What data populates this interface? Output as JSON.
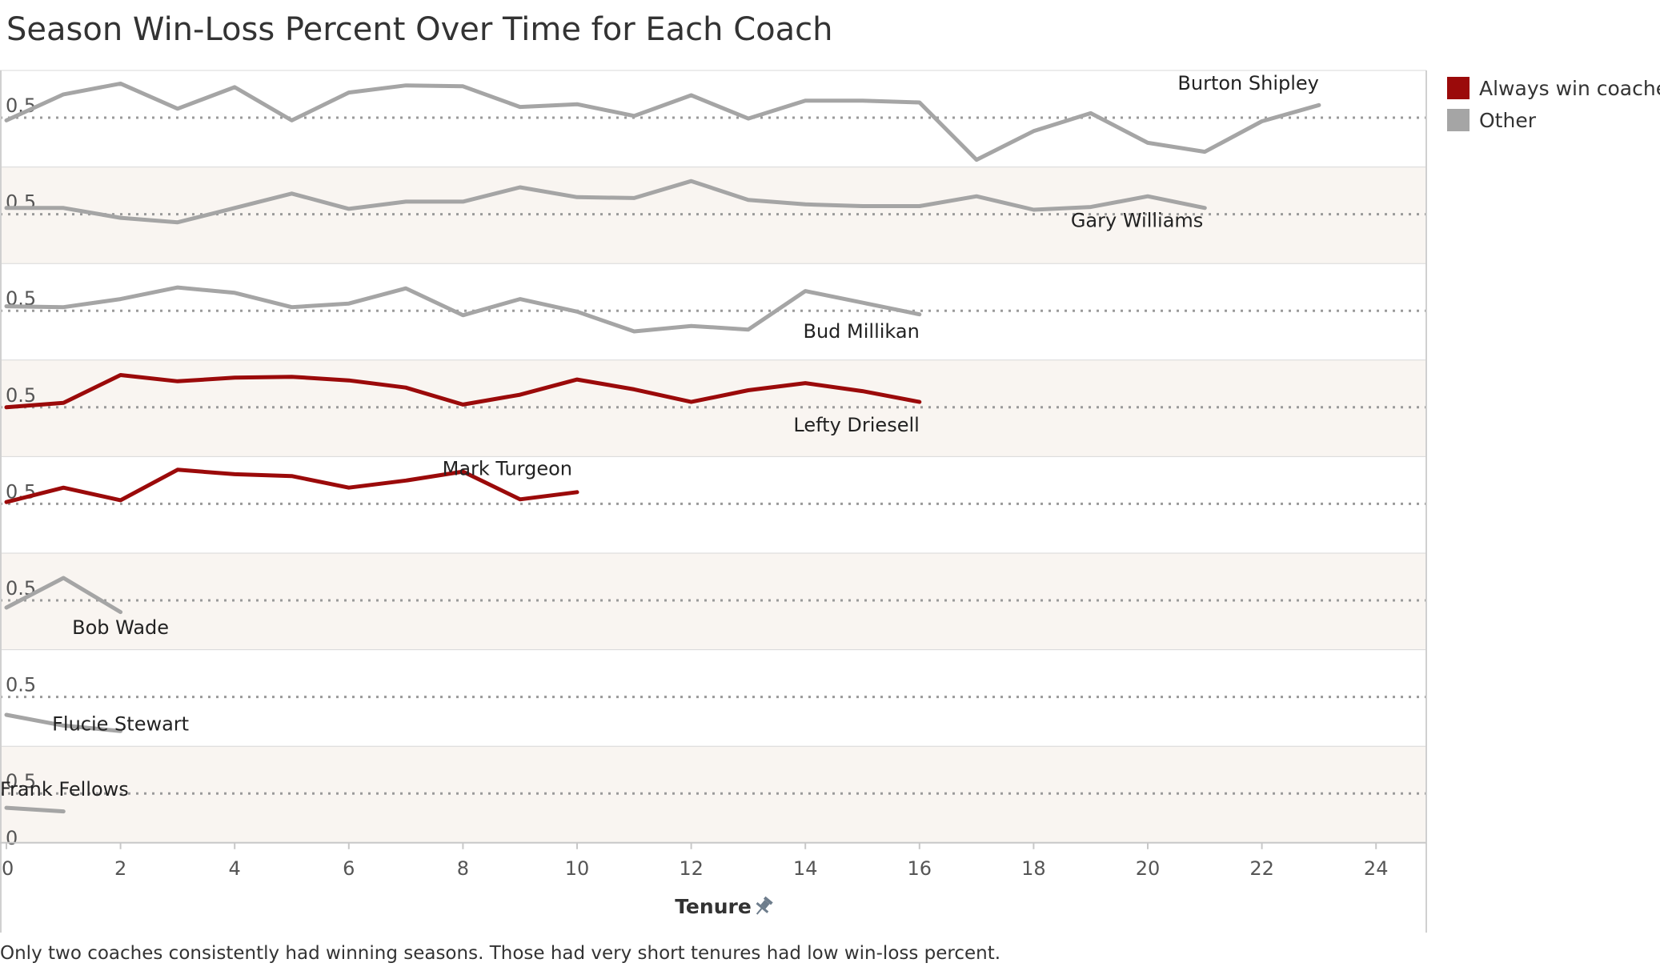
{
  "title": "Season Win-Loss Percent Over Time for Each Coach",
  "footnote": "Only two coaches consistently had winning seasons. Those had very short tenures had low win-loss percent.",
  "legend": {
    "items": [
      {
        "label": "Always win coaches",
        "color": "#9b0a0a"
      },
      {
        "label": "Other",
        "color": "#a5a5a5"
      }
    ]
  },
  "colors": {
    "highlight": "#9b0a0a",
    "other": "#a5a5a5",
    "band_shaded": "#f9f5f1",
    "band_plain": "#ffffff",
    "reference_line": "#9a9a9a",
    "axis_text": "#555555"
  },
  "x_axis": {
    "label": "Tenure",
    "icon": "pin-icon"
  },
  "chart_data": {
    "type": "line",
    "layout": "small-multiples",
    "xlabel": "Tenure",
    "ylabel": "",
    "xlim": [
      0,
      25
    ],
    "x_ticks": [
      0,
      2,
      4,
      6,
      8,
      10,
      12,
      14,
      16,
      18,
      20,
      22,
      24
    ],
    "ylim": [
      0,
      1
    ],
    "y_tick_label": "0.5",
    "y_min_label": "0",
    "reference_line": 0.5,
    "grid": false,
    "legend_position": "top-right",
    "series": [
      {
        "name": "Burton Shipley",
        "group": "Other",
        "x": [
          0,
          1,
          2,
          3,
          4,
          5,
          6,
          7,
          8,
          9,
          10,
          11,
          12,
          13,
          14,
          15,
          16,
          17,
          18,
          19,
          20,
          21,
          22,
          23
        ],
        "values": [
          0.47,
          0.76,
          0.88,
          0.6,
          0.84,
          0.47,
          0.78,
          0.86,
          0.85,
          0.62,
          0.65,
          0.52,
          0.75,
          0.49,
          0.69,
          0.69,
          0.67,
          0.03,
          0.35,
          0.55,
          0.22,
          0.12,
          0.46,
          0.64
        ]
      },
      {
        "name": "Gary Williams",
        "group": "Other",
        "x": [
          0,
          1,
          2,
          3,
          4,
          5,
          6,
          7,
          8,
          9,
          10,
          11,
          12,
          13,
          14,
          15,
          16,
          17,
          18,
          19,
          20,
          21
        ],
        "values": [
          0.57,
          0.57,
          0.46,
          0.41,
          0.57,
          0.73,
          0.56,
          0.64,
          0.64,
          0.8,
          0.69,
          0.68,
          0.87,
          0.66,
          0.61,
          0.59,
          0.59,
          0.7,
          0.55,
          0.58,
          0.7,
          0.57
        ]
      },
      {
        "name": "Bud Millikan",
        "group": "Other",
        "x": [
          0,
          1,
          2,
          3,
          4,
          5,
          6,
          7,
          8,
          9,
          10,
          11,
          12,
          13,
          14,
          15,
          16
        ],
        "values": [
          0.55,
          0.54,
          0.63,
          0.76,
          0.7,
          0.54,
          0.58,
          0.75,
          0.45,
          0.63,
          0.49,
          0.27,
          0.33,
          0.29,
          0.72,
          0.59,
          0.46
        ]
      },
      {
        "name": "Lefty Driesell",
        "group": "Always win coaches",
        "x": [
          0,
          1,
          2,
          3,
          4,
          5,
          6,
          7,
          8,
          9,
          10,
          11,
          12,
          13,
          14,
          15,
          16
        ],
        "values": [
          0.5,
          0.55,
          0.86,
          0.79,
          0.83,
          0.84,
          0.8,
          0.72,
          0.53,
          0.64,
          0.81,
          0.7,
          0.56,
          0.69,
          0.77,
          0.68,
          0.56
        ]
      },
      {
        "name": "Mark Turgeon",
        "group": "Always win coaches",
        "x": [
          0,
          1,
          2,
          3,
          4,
          5,
          6,
          7,
          8,
          9,
          10
        ],
        "values": [
          0.52,
          0.68,
          0.54,
          0.88,
          0.83,
          0.81,
          0.68,
          0.76,
          0.86,
          0.55,
          0.63
        ]
      },
      {
        "name": "Bob Wade",
        "group": "Other",
        "x": [
          0,
          1,
          2
        ],
        "values": [
          0.42,
          0.75,
          0.37
        ]
      },
      {
        "name": "Flucie Stewart",
        "group": "Other",
        "x": [
          0,
          1,
          2
        ],
        "values": [
          0.3,
          0.18,
          0.12
        ]
      },
      {
        "name": "Frank Fellows",
        "group": "Other",
        "x": [
          0,
          1
        ],
        "values": [
          0.34,
          0.3
        ]
      }
    ]
  }
}
